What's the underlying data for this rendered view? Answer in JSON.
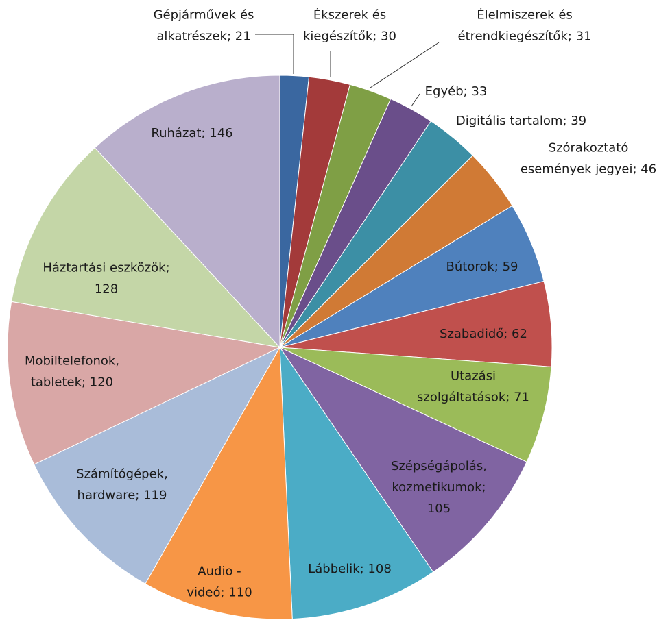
{
  "chart_data": {
    "type": "pie",
    "values": [
      21,
      30,
      31,
      33,
      39,
      46,
      59,
      62,
      71,
      105,
      108,
      110,
      119,
      120,
      128,
      146
    ],
    "value_labels": [
      [
        "Gépjárművek és",
        "alkatrészek; 21"
      ],
      [
        "Ékszerek és",
        "kiegészítők; 30"
      ],
      [
        "Élelmiszerek és",
        "étrendkiegészítők; 31"
      ],
      [
        "Egyéb; 33"
      ],
      [
        "Digitális tartalom; 39"
      ],
      [
        "Szórakoztató",
        "események jegyei; 46"
      ],
      [
        "Bútorok; 59"
      ],
      [
        "Szabadidő; 62"
      ],
      [
        "Utazási",
        "szolgáltatások; 71"
      ],
      [
        "Szépségápolás,",
        "kozmetikumok;",
        "105"
      ],
      [
        "Lábbelik; 108"
      ],
      [
        "Audio -",
        "videó; 110"
      ],
      [
        "Számítógépek,",
        "hardware; 119"
      ],
      [
        "Mobiltelefonok,",
        "tabletek; 120"
      ],
      [
        "Háztartási eszközök;",
        "128"
      ],
      [
        "Ruházat; 146"
      ]
    ],
    "colors": [
      "#3a67a0",
      "#a33a3a",
      "#7f9f45",
      "#6a4e8a",
      "#3c8fa5",
      "#d07a35",
      "#4f81bd",
      "#c0504d",
      "#9bbb59",
      "#8064a2",
      "#4bacc6",
      "#f79646",
      "#a9bcd9",
      "#d9a7a6",
      "#c4d6a7",
      "#b9afcc"
    ]
  }
}
